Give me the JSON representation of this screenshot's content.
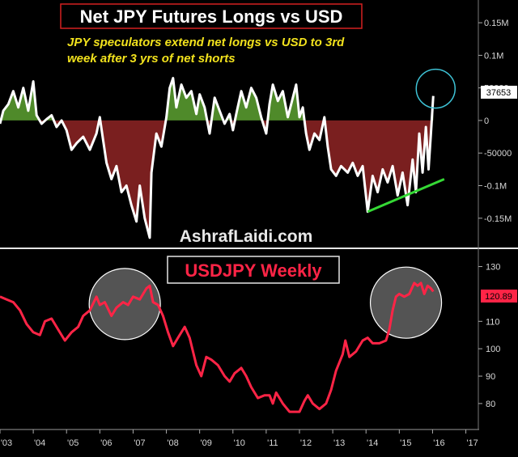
{
  "top": {
    "title": "Net JPY Futures Longs vs USD",
    "subtitle_line1": "JPY speculators extend net longs vs USD to 3rd",
    "subtitle_line2": "week after 3 yrs of net shorts",
    "watermark": "AshrafLaidi.com",
    "last_value_label": "37653",
    "colors": {
      "line": "#ffffff",
      "positive_fill": "#4f8a2a",
      "negative_fill": "#7a1f1f",
      "trendline": "#35d835",
      "circle": "#3ec3d6",
      "title_border": "#d42020"
    }
  },
  "bottom": {
    "title": "USDJPY Weekly",
    "last_value_label": "120.89",
    "colors": {
      "line": "#ff2446",
      "label_bg": "#ff2446",
      "circle_fill": "rgba(255,255,255,0.33)"
    }
  },
  "chart_data": [
    {
      "type": "area",
      "title": "Net JPY Futures Longs vs USD",
      "series": [
        {
          "values": [
            [
              2003.0,
              -5000
            ],
            [
              2003.1,
              15000
            ],
            [
              2003.25,
              25000
            ],
            [
              2003.4,
              45000
            ],
            [
              2003.55,
              20000
            ],
            [
              2003.7,
              50000
            ],
            [
              2003.85,
              15000
            ],
            [
              2004.0,
              60000
            ],
            [
              2004.1,
              8000
            ],
            [
              2004.25,
              -5000
            ],
            [
              2004.4,
              2000
            ],
            [
              2004.55,
              8000
            ],
            [
              2004.7,
              -10000
            ],
            [
              2004.85,
              0
            ],
            [
              2005.0,
              -15000
            ],
            [
              2005.15,
              -45000
            ],
            [
              2005.3,
              -35000
            ],
            [
              2005.5,
              -25000
            ],
            [
              2005.7,
              -45000
            ],
            [
              2005.9,
              -20000
            ],
            [
              2006.0,
              5000
            ],
            [
              2006.1,
              -30000
            ],
            [
              2006.2,
              -65000
            ],
            [
              2006.35,
              -90000
            ],
            [
              2006.5,
              -70000
            ],
            [
              2006.65,
              -110000
            ],
            [
              2006.8,
              -100000
            ],
            [
              2006.95,
              -130000
            ],
            [
              2007.1,
              -155000
            ],
            [
              2007.2,
              -100000
            ],
            [
              2007.35,
              -150000
            ],
            [
              2007.5,
              -180000
            ],
            [
              2007.55,
              -80000
            ],
            [
              2007.7,
              -20000
            ],
            [
              2007.85,
              -40000
            ],
            [
              2008.0,
              5000
            ],
            [
              2008.1,
              50000
            ],
            [
              2008.2,
              65000
            ],
            [
              2008.3,
              20000
            ],
            [
              2008.45,
              55000
            ],
            [
              2008.6,
              35000
            ],
            [
              2008.75,
              45000
            ],
            [
              2008.9,
              10000
            ],
            [
              2009.0,
              40000
            ],
            [
              2009.15,
              20000
            ],
            [
              2009.3,
              -20000
            ],
            [
              2009.45,
              35000
            ],
            [
              2009.6,
              15000
            ],
            [
              2009.75,
              -5000
            ],
            [
              2009.9,
              10000
            ],
            [
              2010.0,
              -15000
            ],
            [
              2010.1,
              10000
            ],
            [
              2010.25,
              45000
            ],
            [
              2010.4,
              20000
            ],
            [
              2010.55,
              50000
            ],
            [
              2010.7,
              35000
            ],
            [
              2010.85,
              5000
            ],
            [
              2011.0,
              -20000
            ],
            [
              2011.1,
              25000
            ],
            [
              2011.2,
              55000
            ],
            [
              2011.35,
              30000
            ],
            [
              2011.5,
              45000
            ],
            [
              2011.65,
              5000
            ],
            [
              2011.8,
              35000
            ],
            [
              2011.9,
              55000
            ],
            [
              2012.0,
              5000
            ],
            [
              2012.1,
              20000
            ],
            [
              2012.2,
              -20000
            ],
            [
              2012.3,
              -45000
            ],
            [
              2012.45,
              -20000
            ],
            [
              2012.6,
              -30000
            ],
            [
              2012.75,
              5000
            ],
            [
              2012.85,
              -40000
            ],
            [
              2012.95,
              -75000
            ],
            [
              2013.1,
              -85000
            ],
            [
              2013.25,
              -70000
            ],
            [
              2013.45,
              -80000
            ],
            [
              2013.6,
              -65000
            ],
            [
              2013.75,
              -85000
            ],
            [
              2013.9,
              -70000
            ],
            [
              2014.05,
              -140000
            ],
            [
              2014.2,
              -85000
            ],
            [
              2014.35,
              -110000
            ],
            [
              2014.5,
              -75000
            ],
            [
              2014.65,
              -95000
            ],
            [
              2014.8,
              -70000
            ],
            [
              2014.95,
              -115000
            ],
            [
              2015.1,
              -80000
            ],
            [
              2015.25,
              -130000
            ],
            [
              2015.4,
              -60000
            ],
            [
              2015.5,
              -110000
            ],
            [
              2015.6,
              -20000
            ],
            [
              2015.7,
              -80000
            ],
            [
              2015.8,
              -10000
            ],
            [
              2015.88,
              -75000
            ],
            [
              2015.95,
              -20000
            ],
            [
              2016.02,
              37653
            ]
          ]
        }
      ],
      "ylim": [
        -190000,
        170000
      ],
      "yticks": [
        {
          "value": 150000,
          "label": "0.15M"
        },
        {
          "value": 100000,
          "label": "0.1M"
        },
        {
          "value": 50000,
          "label": "50000"
        },
        {
          "value": 0,
          "label": "0"
        },
        {
          "value": -50000,
          "label": "-50000"
        },
        {
          "value": -100000,
          "label": "-0.1M"
        },
        {
          "value": -150000,
          "label": "-0.15M"
        }
      ],
      "trendline": [
        [
          2014.05,
          -140000
        ],
        [
          2016.35,
          -90000
        ]
      ]
    },
    {
      "type": "line",
      "title": "USDJPY Weekly",
      "series": [
        {
          "values": [
            [
              2003.0,
              119
            ],
            [
              2003.2,
              118
            ],
            [
              2003.4,
              117
            ],
            [
              2003.6,
              114
            ],
            [
              2003.8,
              109
            ],
            [
              2004.0,
              106
            ],
            [
              2004.2,
              105
            ],
            [
              2004.35,
              110
            ],
            [
              2004.55,
              111
            ],
            [
              2004.75,
              107
            ],
            [
              2004.95,
              103
            ],
            [
              2005.15,
              106
            ],
            [
              2005.35,
              108
            ],
            [
              2005.5,
              112
            ],
            [
              2005.7,
              114
            ],
            [
              2005.9,
              119
            ],
            [
              2006.0,
              116
            ],
            [
              2006.15,
              117
            ],
            [
              2006.35,
              112
            ],
            [
              2006.5,
              115
            ],
            [
              2006.7,
              117
            ],
            [
              2006.85,
              116
            ],
            [
              2007.0,
              119
            ],
            [
              2007.2,
              118
            ],
            [
              2007.4,
              122
            ],
            [
              2007.5,
              123
            ],
            [
              2007.6,
              117
            ],
            [
              2007.75,
              116
            ],
            [
              2007.9,
              112
            ],
            [
              2008.05,
              106
            ],
            [
              2008.2,
              101
            ],
            [
              2008.35,
              104
            ],
            [
              2008.55,
              108
            ],
            [
              2008.7,
              104
            ],
            [
              2008.9,
              94
            ],
            [
              2009.05,
              90
            ],
            [
              2009.2,
              97
            ],
            [
              2009.35,
              96
            ],
            [
              2009.55,
              94
            ],
            [
              2009.75,
              90
            ],
            [
              2009.9,
              88
            ],
            [
              2010.05,
              91
            ],
            [
              2010.25,
              93
            ],
            [
              2010.4,
              90
            ],
            [
              2010.55,
              86
            ],
            [
              2010.75,
              82
            ],
            [
              2010.95,
              83
            ],
            [
              2011.1,
              83
            ],
            [
              2011.2,
              80
            ],
            [
              2011.3,
              84
            ],
            [
              2011.5,
              80
            ],
            [
              2011.7,
              77
            ],
            [
              2011.85,
              77
            ],
            [
              2012.0,
              77
            ],
            [
              2012.15,
              81
            ],
            [
              2012.25,
              83
            ],
            [
              2012.4,
              80
            ],
            [
              2012.6,
              78
            ],
            [
              2012.8,
              80
            ],
            [
              2012.95,
              85
            ],
            [
              2013.1,
              92
            ],
            [
              2013.3,
              98
            ],
            [
              2013.38,
              103
            ],
            [
              2013.5,
              97
            ],
            [
              2013.7,
              99
            ],
            [
              2013.9,
              103
            ],
            [
              2014.05,
              104
            ],
            [
              2014.2,
              102
            ],
            [
              2014.4,
              102
            ],
            [
              2014.6,
              103
            ],
            [
              2014.7,
              107
            ],
            [
              2014.8,
              114
            ],
            [
              2014.9,
              119
            ],
            [
              2015.0,
              120
            ],
            [
              2015.15,
              119
            ],
            [
              2015.3,
              120
            ],
            [
              2015.45,
              124
            ],
            [
              2015.55,
              123
            ],
            [
              2015.65,
              124
            ],
            [
              2015.75,
              120
            ],
            [
              2015.85,
              123
            ],
            [
              2015.95,
              122
            ],
            [
              2016.02,
              120.89
            ]
          ]
        }
      ],
      "ylim": [
        72,
        134
      ],
      "yticks": [
        130,
        110,
        100,
        90,
        80
      ],
      "highlight_ranges": [
        [
          2006.0,
          2007.5
        ],
        [
          2014.5,
          2015.9
        ]
      ]
    }
  ],
  "x_axis": {
    "range": [
      2003.0,
      2017.4
    ],
    "ticks": [
      {
        "value": 2003.0,
        "label": "'03"
      },
      {
        "value": 2004.0,
        "label": "'04"
      },
      {
        "value": 2005.0,
        "label": "'05"
      },
      {
        "value": 2006.0,
        "label": "'06"
      },
      {
        "value": 2007.0,
        "label": "'07"
      },
      {
        "value": 2008.0,
        "label": "'08"
      },
      {
        "value": 2009.0,
        "label": "'09"
      },
      {
        "value": 2010.0,
        "label": "'10"
      },
      {
        "value": 2011.0,
        "label": "'11"
      },
      {
        "value": 2012.0,
        "label": "'12"
      },
      {
        "value": 2013.0,
        "label": "'13"
      },
      {
        "value": 2014.0,
        "label": "'14"
      },
      {
        "value": 2015.0,
        "label": "'15"
      },
      {
        "value": 2016.0,
        "label": "'16"
      },
      {
        "value": 2017.0,
        "label": "'17"
      }
    ]
  }
}
